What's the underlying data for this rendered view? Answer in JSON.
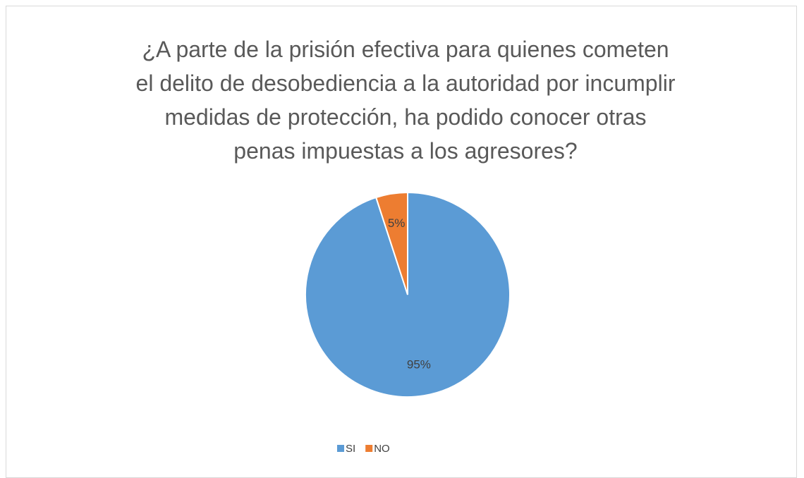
{
  "chart_data": {
    "type": "pie",
    "title": "¿A parte de la prisión efectiva para quienes cometen el delito de desobediencia a la autoridad por incumplir medidas de protección, ha podido conocer otras penas impuestas a los agresores?",
    "categories": [
      "SI",
      "NO"
    ],
    "values": [
      95,
      5
    ],
    "value_labels": [
      "95%",
      "5%"
    ],
    "colors": [
      "#5b9bd5",
      "#ed7d31"
    ],
    "legend": "bottom"
  }
}
